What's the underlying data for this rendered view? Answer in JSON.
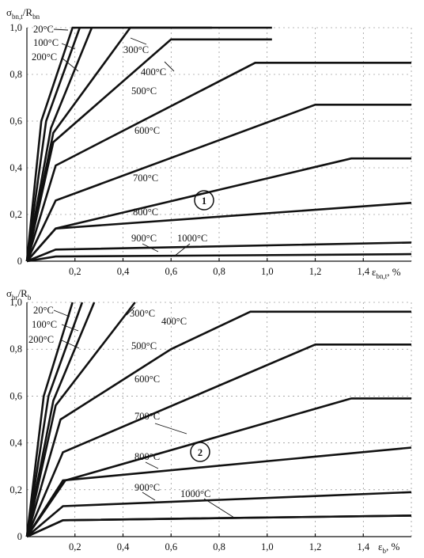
{
  "chart_data": [
    {
      "type": "line",
      "id": "1",
      "ylabel_main": "σ",
      "ylabel_sub": "bn,t",
      "ylabel_rest": "/R",
      "ylabel_sub2": "bn",
      "xlabel_main": "ε",
      "xlabel_sub": "bn,t",
      "xlabel_rest": ", %",
      "xlim": [
        0,
        1.6
      ],
      "ylim": [
        0,
        1.0
      ],
      "xticks": [
        "0,2",
        "0,4",
        "0,6",
        "0,8",
        "1,0",
        "1,2",
        "1,4"
      ],
      "yticks": [
        "0",
        "0,2",
        "0,4",
        "0,6",
        "0,8",
        "1,0"
      ],
      "grid": true,
      "series": [
        {
          "name": "20°C",
          "x": [
            0,
            0.06,
            0.19,
            0.77
          ],
          "y": [
            0,
            0.6,
            1.0,
            1.0
          ]
        },
        {
          "name": "100°C",
          "x": [
            0,
            0.08,
            0.22
          ],
          "y": [
            0,
            0.6,
            1.0
          ]
        },
        {
          "name": "200°C",
          "x": [
            0,
            0.1,
            0.27
          ],
          "y": [
            0,
            0.57,
            1.0
          ]
        },
        {
          "name": "300°C",
          "x": [
            0,
            0.11,
            0.43,
            1.02
          ],
          "y": [
            0,
            0.55,
            1.0,
            1.0
          ]
        },
        {
          "name": "400°C",
          "x": [
            0,
            0.11,
            0.6,
            1.02
          ],
          "y": [
            0,
            0.51,
            0.95,
            0.95
          ]
        },
        {
          "name": "500°C",
          "x": [
            0,
            0.12,
            0.95,
            1.6
          ],
          "y": [
            0,
            0.41,
            0.85,
            0.85
          ]
        },
        {
          "name": "600°C",
          "x": [
            0,
            0.12,
            1.2,
            1.6
          ],
          "y": [
            0,
            0.26,
            0.67,
            0.67
          ]
        },
        {
          "name": "700°C",
          "x": [
            0,
            0.12,
            1.35,
            1.6
          ],
          "y": [
            0,
            0.14,
            0.44,
            0.44
          ]
        },
        {
          "name": "800°C",
          "x": [
            0,
            0.12,
            1.6
          ],
          "y": [
            0,
            0.14,
            0.25
          ]
        },
        {
          "name": "900°C",
          "x": [
            0,
            0.12,
            1.6
          ],
          "y": [
            0,
            0.05,
            0.08
          ]
        },
        {
          "name": "1000°C",
          "x": [
            0,
            0.12,
            1.6
          ],
          "y": [
            0,
            0.02,
            0.03
          ]
        }
      ]
    },
    {
      "type": "line",
      "id": "2",
      "ylabel_main": "σ",
      "ylabel_sub": "br",
      "ylabel_rest": "/R",
      "ylabel_sub2": "b",
      "xlabel_main": "ε",
      "xlabel_sub": "b",
      "xlabel_rest": ", %",
      "xlim": [
        0,
        1.6
      ],
      "ylim": [
        0,
        1.0
      ],
      "xticks": [
        "0,2",
        "0,4",
        "0,6",
        "0,8",
        "1,0",
        "1,2",
        "1,4"
      ],
      "yticks": [
        "0",
        "0,2",
        "0,4",
        "0,6",
        "0,8",
        "1,0"
      ],
      "grid": true,
      "series": [
        {
          "name": "20°C",
          "x": [
            0,
            0.07,
            0.19
          ],
          "y": [
            0,
            0.6,
            1.0
          ]
        },
        {
          "name": "100°C",
          "x": [
            0,
            0.09,
            0.23
          ],
          "y": [
            0,
            0.6,
            1.0
          ]
        },
        {
          "name": "200°C",
          "x": [
            0,
            0.11,
            0.28
          ],
          "y": [
            0,
            0.58,
            1.0
          ]
        },
        {
          "name": "300°C",
          "x": [
            0,
            0.12,
            0.45
          ],
          "y": [
            0,
            0.56,
            1.0
          ]
        },
        {
          "name": "400°C",
          "x": [
            0,
            0.14,
            0.6,
            0.93,
            1.6
          ],
          "y": [
            0,
            0.5,
            0.8,
            0.96,
            0.96
          ]
        },
        {
          "name": "500°C",
          "x": [
            0,
            0.15,
            1.2,
            1.6
          ],
          "y": [
            0,
            0.36,
            0.82,
            0.82
          ]
        },
        {
          "name": "600°C",
          "x": [
            0,
            0.16,
            1.35,
            1.6
          ],
          "y": [
            0,
            0.24,
            0.59,
            0.59
          ]
        },
        {
          "name": "700°C",
          "x": [
            0,
            0.15,
            1.6
          ],
          "y": [
            0,
            0.24,
            0.38
          ]
        },
        {
          "name": "800°C",
          "x": [
            0,
            0.15,
            1.6
          ],
          "y": [
            0,
            0.13,
            0.19
          ]
        },
        {
          "name": "900°C",
          "x": [
            0,
            0.15,
            1.6
          ],
          "y": [
            0,
            0.07,
            0.09
          ]
        },
        {
          "name": "1000°C",
          "x": [
            0,
            0.15,
            1.6
          ],
          "y": [
            0,
            0.07,
            0.09
          ]
        }
      ]
    }
  ]
}
